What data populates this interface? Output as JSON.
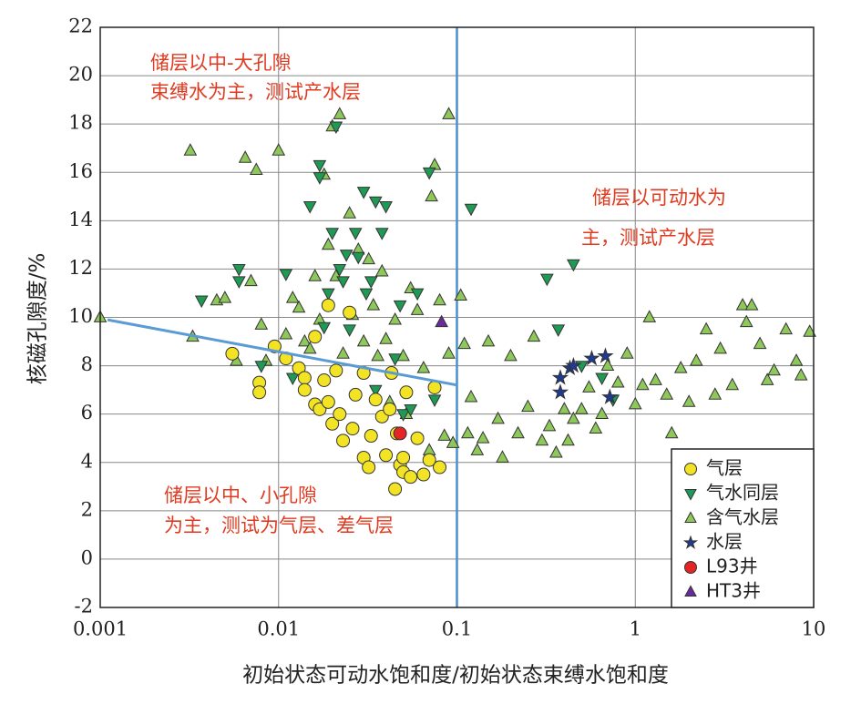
{
  "chart_data": {
    "type": "scatter",
    "xlabel": "初始状态可动水饱和度/初始状态束缚水饱和度",
    "ylabel": "核磁孔隙度/%",
    "xscale": "log",
    "xlim": [
      0.001,
      10
    ],
    "xticks": [
      0.001,
      0.01,
      0.1,
      1,
      10
    ],
    "ylim": [
      -2,
      22
    ],
    "yticks": [
      -2,
      0,
      2,
      4,
      6,
      8,
      10,
      12,
      14,
      16,
      18,
      20,
      22
    ],
    "grid": true,
    "legend": "lower right",
    "annotations": [
      "储层以中-大孔隙",
      "束缚水为主，测试产水层",
      "储层以可动水为",
      "主，测试产水层",
      "储层以中、小孔隙",
      "为主，测试为气层、差气层"
    ],
    "vline": {
      "x": 0.1,
      "color": "#4a8fd0"
    },
    "trend_line": {
      "x": [
        0.0011,
        0.1
      ],
      "y": [
        9.9,
        7.2
      ],
      "color": "#5b9bd5"
    },
    "series": [
      {
        "name": "气层",
        "marker": "circle",
        "color": "#f2e424",
        "x": [
          0.0055,
          0.0078,
          0.0078,
          0.0095,
          0.011,
          0.013,
          0.014,
          0.014,
          0.016,
          0.016,
          0.017,
          0.018,
          0.019,
          0.019,
          0.02,
          0.021,
          0.022,
          0.023,
          0.025,
          0.026,
          0.027,
          0.03,
          0.03,
          0.032,
          0.033,
          0.035,
          0.038,
          0.04,
          0.042,
          0.043,
          0.045,
          0.046,
          0.048,
          0.05,
          0.05,
          0.052,
          0.055,
          0.06,
          0.065,
          0.07,
          0.075,
          0.08
        ],
        "y": [
          8.5,
          7.3,
          6.9,
          8.8,
          8.3,
          7.9,
          7.5,
          7.0,
          6.4,
          9.2,
          6.2,
          7.4,
          6.5,
          10.5,
          5.6,
          7.8,
          6.0,
          4.9,
          10.2,
          5.4,
          6.8,
          4.2,
          7.7,
          3.8,
          5.1,
          6.6,
          5.9,
          4.3,
          6.2,
          7.7,
          2.9,
          5.2,
          3.9,
          4.2,
          3.6,
          6.9,
          3.4,
          5.0,
          3.5,
          4.1,
          7.1,
          3.8
        ]
      },
      {
        "name": "气水同层",
        "marker": "triangle-down",
        "color": "#1f9a55",
        "x": [
          0.0037,
          0.006,
          0.006,
          0.008,
          0.011,
          0.012,
          0.015,
          0.017,
          0.017,
          0.018,
          0.019,
          0.02,
          0.021,
          0.022,
          0.023,
          0.024,
          0.025,
          0.027,
          0.028,
          0.03,
          0.031,
          0.033,
          0.035,
          0.035,
          0.038,
          0.04,
          0.045,
          0.048,
          0.05,
          0.055,
          0.06,
          0.07,
          0.075,
          0.12,
          0.32,
          0.37,
          0.45,
          0.5,
          0.75,
          0.65
        ],
        "y": [
          10.7,
          12.0,
          11.5,
          8.0,
          11.8,
          7.5,
          14.6,
          16.3,
          15.8,
          9.6,
          11.0,
          13.5,
          17.9,
          12.0,
          11.5,
          12.6,
          9.5,
          13.5,
          12.5,
          15.2,
          11.0,
          11.5,
          14.8,
          7.0,
          13.5,
          14.6,
          8.3,
          10.5,
          6.0,
          6.2,
          11.0,
          16.0,
          6.6,
          14.5,
          11.6,
          9.5,
          12.2,
          8.0,
          6.6,
          7.5
        ]
      },
      {
        "name": "含气水层",
        "marker": "triangle-up",
        "color": "#8fc85a",
        "x": [
          0.001,
          0.0032,
          0.0033,
          0.0045,
          0.005,
          0.0058,
          0.0065,
          0.007,
          0.0075,
          0.008,
          0.0085,
          0.01,
          0.011,
          0.012,
          0.013,
          0.014,
          0.015,
          0.016,
          0.017,
          0.018,
          0.019,
          0.02,
          0.021,
          0.022,
          0.023,
          0.025,
          0.026,
          0.028,
          0.03,
          0.032,
          0.034,
          0.036,
          0.038,
          0.04,
          0.042,
          0.045,
          0.05,
          0.052,
          0.055,
          0.06,
          0.065,
          0.07,
          0.072,
          0.075,
          0.08,
          0.085,
          0.09,
          0.09,
          0.095,
          0.105,
          0.11,
          0.115,
          0.12,
          0.13,
          0.14,
          0.15,
          0.17,
          0.18,
          0.2,
          0.22,
          0.25,
          0.27,
          0.3,
          0.33,
          0.36,
          0.4,
          0.42,
          0.45,
          0.5,
          0.55,
          0.6,
          0.65,
          0.7,
          0.8,
          0.9,
          1.0,
          1.1,
          1.2,
          1.3,
          1.5,
          1.6,
          1.8,
          2.0,
          2.2,
          2.5,
          2.8,
          3.0,
          3.5,
          4.0,
          4.2,
          4.5,
          5,
          5.5,
          6,
          7,
          8,
          9.5,
          8.5
        ],
        "y": [
          10.0,
          16.9,
          9.2,
          10.7,
          10.8,
          8.2,
          16.6,
          11.5,
          16.1,
          9.7,
          8.2,
          16.9,
          9.3,
          10.8,
          10.4,
          9.0,
          8.7,
          11.7,
          9.9,
          15.9,
          13.0,
          17.9,
          11.7,
          18.4,
          8.5,
          14.3,
          10.1,
          12.8,
          9.0,
          12.4,
          10.5,
          8.4,
          11.9,
          9.1,
          6.5,
          9.9,
          8.4,
          6.0,
          11.2,
          10.3,
          7.9,
          4.5,
          15.0,
          16.3,
          10.7,
          5.1,
          18.4,
          8.5,
          4.8,
          10.9,
          8.9,
          5.2,
          6.7,
          4.5,
          5.0,
          9.0,
          5.8,
          4.2,
          8.4,
          5.2,
          6.3,
          9.2,
          4.9,
          5.5,
          4.4,
          6.2,
          4.9,
          5.8,
          6.2,
          7.1,
          5.4,
          6.0,
          8.0,
          7.3,
          8.5,
          6.4,
          7.2,
          10.0,
          7.4,
          6.8,
          5.2,
          7.9,
          6.5,
          8.2,
          9.5,
          6.8,
          8.7,
          7.2,
          10.5,
          9.8,
          10.5,
          8.9,
          7.4,
          7.8,
          9.5,
          8.2,
          9.4,
          7.6
        ]
      },
      {
        "name": "水层",
        "marker": "star",
        "color": "#1f3a8f",
        "x": [
          0.38,
          0.38,
          0.43,
          0.45,
          0.57,
          0.68,
          0.72
        ],
        "y": [
          7.5,
          6.9,
          7.9,
          8.0,
          8.3,
          8.4,
          6.7
        ]
      },
      {
        "name": "L93井",
        "marker": "circle",
        "color": "#e52424",
        "x": [
          0.048
        ],
        "y": [
          5.2
        ]
      },
      {
        "name": "HT3井",
        "marker": "triangle-up",
        "color": "#6a2a9a",
        "x": [
          0.082
        ],
        "y": [
          9.8
        ]
      }
    ]
  }
}
